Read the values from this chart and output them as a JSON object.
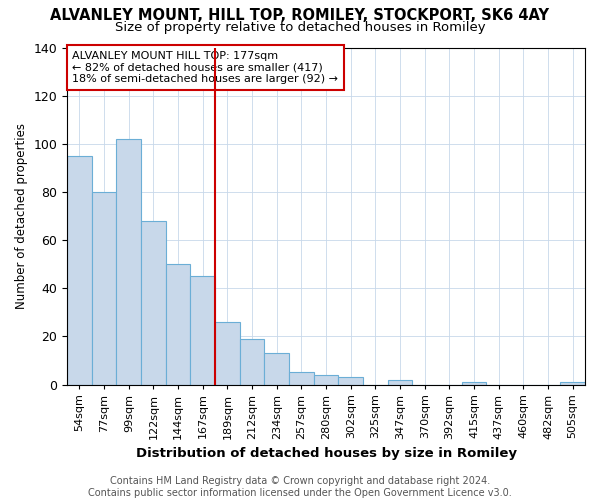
{
  "title": "ALVANLEY MOUNT, HILL TOP, ROMILEY, STOCKPORT, SK6 4AY",
  "subtitle": "Size of property relative to detached houses in Romiley",
  "xlabel": "Distribution of detached houses by size in Romiley",
  "ylabel": "Number of detached properties",
  "categories": [
    "54sqm",
    "77sqm",
    "99sqm",
    "122sqm",
    "144sqm",
    "167sqm",
    "189sqm",
    "212sqm",
    "234sqm",
    "257sqm",
    "280sqm",
    "302sqm",
    "325sqm",
    "347sqm",
    "370sqm",
    "392sqm",
    "415sqm",
    "437sqm",
    "460sqm",
    "482sqm",
    "505sqm"
  ],
  "values": [
    95,
    80,
    102,
    68,
    50,
    45,
    26,
    19,
    13,
    5,
    4,
    3,
    0,
    2,
    0,
    0,
    1,
    0,
    0,
    0,
    1
  ],
  "bar_color": "#c8d8ea",
  "bar_edge_color": "#6baed6",
  "marker_index": 6,
  "marker_color": "#cc0000",
  "ylim": [
    0,
    140
  ],
  "yticks": [
    0,
    20,
    40,
    60,
    80,
    100,
    120,
    140
  ],
  "annotation_text": "ALVANLEY MOUNT HILL TOP: 177sqm\n← 82% of detached houses are smaller (417)\n18% of semi-detached houses are larger (92) →",
  "footer": "Contains HM Land Registry data © Crown copyright and database right 2024.\nContains public sector information licensed under the Open Government Licence v3.0.",
  "bg_color": "#ffffff",
  "plot_bg_color": "#ffffff",
  "title_fontsize": 10.5,
  "subtitle_fontsize": 9.5,
  "tick_fontsize": 8,
  "footer_fontsize": 7
}
